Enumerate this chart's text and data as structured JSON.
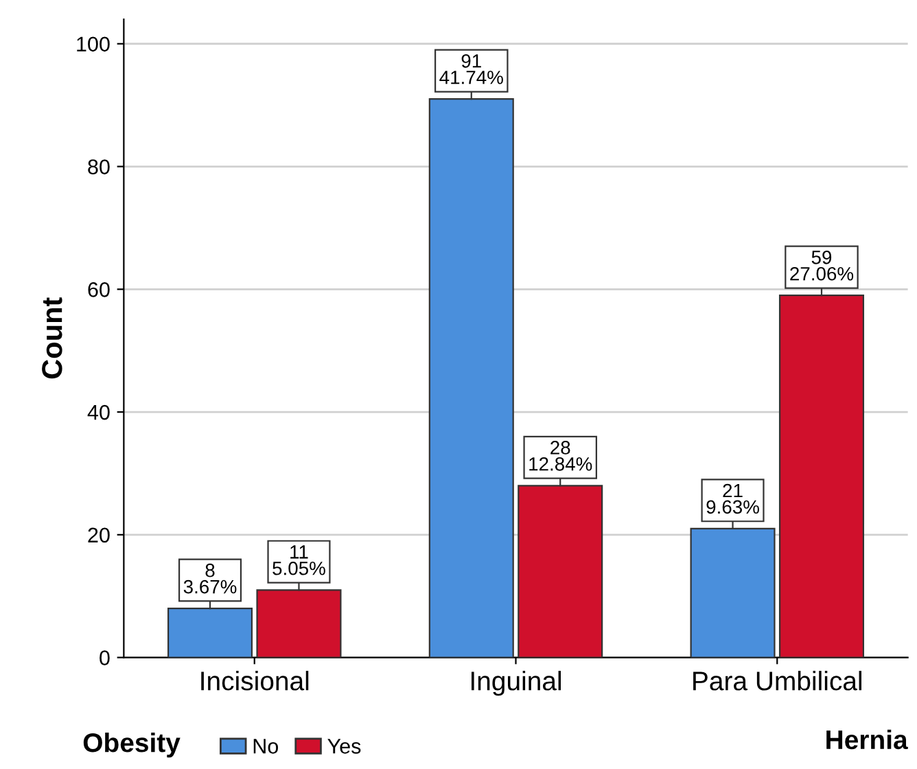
{
  "chart_data": {
    "type": "bar",
    "xlabel": "Hernia",
    "ylabel": "Count",
    "legend_title": "Obesity",
    "categories": [
      "Incisional",
      "Inguinal",
      "Para Umbilical"
    ],
    "series": [
      {
        "name": "No",
        "color": "#4a8fdc",
        "values": [
          8,
          91,
          21
        ],
        "value_labels": [
          "8\n3.67%",
          "91\n41.74%",
          "21\n9.63%"
        ]
      },
      {
        "name": "Yes",
        "color": "#d0102c",
        "values": [
          11,
          28,
          59
        ],
        "value_labels": [
          "11\n5.05%",
          "28\n12.84%",
          "59\n27.06%"
        ]
      }
    ],
    "ylim": [
      0,
      104
    ],
    "yticks": [
      0,
      20,
      40,
      60,
      80,
      100
    ],
    "grid": "y",
    "legend": "bottom left"
  }
}
